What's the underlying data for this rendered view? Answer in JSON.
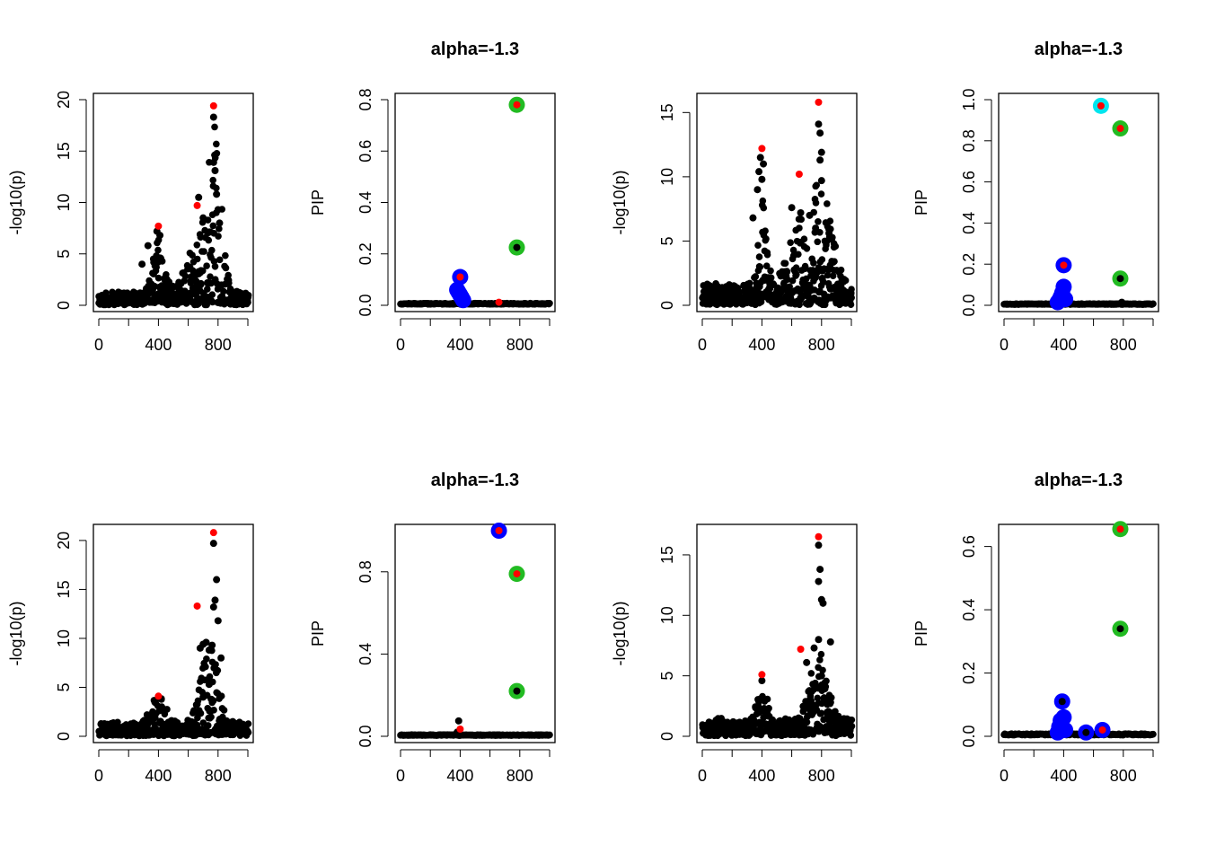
{
  "figure": {
    "background": "#ffffff"
  },
  "colors": {
    "black": "#000000",
    "red": "#ff0000",
    "blue": "#0000ff",
    "green": "#22bb22",
    "cyan": "#00e5ee"
  },
  "chart_data": [
    {
      "type": "scatter",
      "title": "",
      "xlabel": "",
      "ylabel": "-log10(p)",
      "xlim": [
        0,
        1000
      ],
      "ylim": [
        0,
        20
      ],
      "xticks": [
        "0",
        "400",
        "800"
      ],
      "yticks": [
        "0",
        "5",
        "10",
        "15",
        "20"
      ],
      "mode": "manhattan",
      "seed": 11,
      "background_level": 0.9,
      "peaks": [
        [
          780,
          12,
          40
        ],
        [
          400,
          4.5,
          40
        ],
        [
          680,
          5,
          80
        ]
      ],
      "black_points": [
        [
          770,
          18.3
        ],
        [
          770,
          13.9
        ],
        [
          780,
          13.1
        ],
        [
          790,
          10.8
        ],
        [
          670,
          10.5
        ],
        [
          700,
          8.5
        ],
        [
          800,
          9.3
        ],
        [
          810,
          8.0
        ],
        [
          390,
          7.2
        ],
        [
          410,
          6.8
        ],
        [
          330,
          5.8
        ],
        [
          290,
          4.0
        ]
      ],
      "red_points": [
        [
          770,
          19.4
        ],
        [
          400,
          7.7
        ],
        [
          660,
          9.7
        ]
      ],
      "big_points": []
    },
    {
      "type": "scatter",
      "title": "alpha=-1.3",
      "xlabel": "",
      "ylabel": "PIP",
      "xlim": [
        0,
        1000
      ],
      "ylim": [
        0,
        0.8
      ],
      "xticks": [
        "0",
        "400",
        "800"
      ],
      "yticks": [
        "0.0",
        "0.2",
        "0.4",
        "0.6",
        "0.8"
      ],
      "mode": "pip",
      "seed": 12,
      "black_points": [],
      "red_points": [
        [
          660,
          0.012
        ]
      ],
      "big_points": [
        {
          "x": 400,
          "y": 0.11,
          "ring": "blue",
          "inner": "red"
        },
        {
          "x": 380,
          "y": 0.06,
          "ring": "blue",
          "inner": "blue"
        },
        {
          "x": 390,
          "y": 0.05,
          "ring": "blue",
          "inner": "blue"
        },
        {
          "x": 400,
          "y": 0.04,
          "ring": "blue",
          "inner": "blue"
        },
        {
          "x": 410,
          "y": 0.03,
          "ring": "blue",
          "inner": "blue"
        },
        {
          "x": 420,
          "y": 0.02,
          "ring": "blue",
          "inner": "blue"
        },
        {
          "x": 780,
          "y": 0.78,
          "ring": "green",
          "inner": "red"
        },
        {
          "x": 780,
          "y": 0.225,
          "ring": "green",
          "inner": "black"
        }
      ]
    },
    {
      "type": "scatter",
      "title": "",
      "xlabel": "",
      "ylabel": "-log10(p)",
      "xlim": [
        0,
        1000
      ],
      "ylim": [
        0,
        16
      ],
      "xticks": [
        "0",
        "400",
        "800"
      ],
      "yticks": [
        "0",
        "5",
        "10",
        "15"
      ],
      "mode": "manhattan",
      "seed": 13,
      "background_level": 1.2,
      "peaks": [
        [
          400,
          6,
          30
        ],
        [
          780,
          7,
          80
        ],
        [
          620,
          3,
          60
        ]
      ],
      "black_points": [
        [
          780,
          14.1
        ],
        [
          790,
          13.4
        ],
        [
          800,
          11.9
        ],
        [
          790,
          11.3
        ],
        [
          800,
          9.7
        ],
        [
          390,
          11.5
        ],
        [
          410,
          11.0
        ],
        [
          380,
          10.4
        ],
        [
          400,
          9.8
        ],
        [
          370,
          9.0
        ],
        [
          340,
          6.8
        ],
        [
          600,
          7.6
        ],
        [
          660,
          7.2
        ],
        [
          720,
          7.0
        ],
        [
          850,
          5.6
        ],
        [
          760,
          6.0
        ]
      ],
      "red_points": [
        [
          780,
          15.8
        ],
        [
          400,
          12.2
        ],
        [
          650,
          10.2
        ]
      ],
      "big_points": []
    },
    {
      "type": "scatter",
      "title": "alpha=-1.3",
      "xlabel": "",
      "ylabel": "PIP",
      "xlim": [
        0,
        1000
      ],
      "ylim": [
        0,
        1.0
      ],
      "xticks": [
        "0",
        "400",
        "800"
      ],
      "yticks": [
        "0.0",
        "0.2",
        "0.4",
        "0.6",
        "0.8",
        "1.0"
      ],
      "mode": "pip",
      "seed": 14,
      "black_points": [
        [
          790,
          0.015
        ]
      ],
      "red_points": [],
      "big_points": [
        {
          "x": 650,
          "y": 0.97,
          "ring": "cyan",
          "inner": "red"
        },
        {
          "x": 780,
          "y": 0.86,
          "ring": "green",
          "inner": "red"
        },
        {
          "x": 780,
          "y": 0.13,
          "ring": "green",
          "inner": "black"
        },
        {
          "x": 400,
          "y": 0.195,
          "ring": "blue",
          "inner": "red"
        },
        {
          "x": 400,
          "y": 0.09,
          "ring": "blue",
          "inner": "blue"
        },
        {
          "x": 390,
          "y": 0.06,
          "ring": "blue",
          "inner": "blue"
        },
        {
          "x": 380,
          "y": 0.04,
          "ring": "blue",
          "inner": "blue"
        },
        {
          "x": 370,
          "y": 0.025,
          "ring": "blue",
          "inner": "blue"
        },
        {
          "x": 410,
          "y": 0.03,
          "ring": "blue",
          "inner": "blue"
        },
        {
          "x": 360,
          "y": 0.015,
          "ring": "blue",
          "inner": "blue"
        }
      ]
    },
    {
      "type": "scatter",
      "title": "",
      "xlabel": "",
      "ylabel": "-log10(p)",
      "xlim": [
        0,
        1000
      ],
      "ylim": [
        0,
        21
      ],
      "xticks": [
        "0",
        "400",
        "800"
      ],
      "yticks": [
        "0",
        "5",
        "10",
        "15",
        "20"
      ],
      "mode": "manhattan",
      "seed": 15,
      "background_level": 1.0,
      "peaks": [
        [
          740,
          7,
          60
        ],
        [
          400,
          2.5,
          50
        ]
      ],
      "black_points": [
        [
          770,
          19.7
        ],
        [
          790,
          16.0
        ],
        [
          780,
          13.9
        ],
        [
          770,
          13.2
        ],
        [
          800,
          11.8
        ],
        [
          680,
          9.0
        ],
        [
          700,
          9.4
        ],
        [
          720,
          9.6
        ],
        [
          740,
          8.8
        ],
        [
          760,
          9.3
        ],
        [
          820,
          8.0
        ],
        [
          740,
          5.3
        ],
        [
          700,
          4.0
        ]
      ],
      "red_points": [
        [
          770,
          20.8
        ],
        [
          660,
          13.3
        ],
        [
          400,
          4.1
        ]
      ],
      "big_points": []
    },
    {
      "type": "scatter",
      "title": "alpha=-1.3",
      "xlabel": "",
      "ylabel": "PIP",
      "xlim": [
        0,
        1000
      ],
      "ylim": [
        0,
        1.0
      ],
      "xticks": [
        "0",
        "400",
        "800"
      ],
      "yticks": [
        "0.0",
        "0.4",
        "0.8"
      ],
      "mode": "pip",
      "seed": 16,
      "black_points": [
        [
          390,
          0.075
        ],
        [
          380,
          0.02
        ]
      ],
      "red_points": [
        [
          400,
          0.035
        ]
      ],
      "big_points": [
        {
          "x": 660,
          "y": 1.0,
          "ring": "blue",
          "inner": "red"
        },
        {
          "x": 780,
          "y": 0.79,
          "ring": "green",
          "inner": "red"
        },
        {
          "x": 780,
          "y": 0.22,
          "ring": "green",
          "inner": "black"
        }
      ]
    },
    {
      "type": "scatter",
      "title": "",
      "xlabel": "",
      "ylabel": "-log10(p)",
      "xlim": [
        0,
        1000
      ],
      "ylim": [
        0,
        17
      ],
      "xticks": [
        "0",
        "400",
        "800"
      ],
      "yticks": [
        "0",
        "5",
        "10",
        "15"
      ],
      "mode": "manhattan",
      "seed": 17,
      "background_level": 1.0,
      "peaks": [
        [
          780,
          5,
          60
        ],
        [
          400,
          2.5,
          40
        ]
      ],
      "black_points": [
        [
          780,
          15.8
        ],
        [
          790,
          13.8
        ],
        [
          780,
          12.8
        ],
        [
          800,
          11.3
        ],
        [
          810,
          11.0
        ],
        [
          780,
          8.0
        ],
        [
          750,
          7.3
        ],
        [
          860,
          7.8
        ],
        [
          700,
          6.1
        ],
        [
          800,
          5.0
        ],
        [
          400,
          4.6
        ]
      ],
      "red_points": [
        [
          780,
          16.5
        ],
        [
          400,
          5.1
        ],
        [
          660,
          7.2
        ]
      ],
      "big_points": []
    },
    {
      "type": "scatter",
      "title": "alpha=-1.3",
      "xlabel": "",
      "ylabel": "PIP",
      "xlim": [
        0,
        1000
      ],
      "ylim": [
        0,
        0.65
      ],
      "xticks": [
        "0",
        "400",
        "800"
      ],
      "yticks": [
        "0.0",
        "0.2",
        "0.4",
        "0.6"
      ],
      "mode": "pip",
      "seed": 18,
      "black_points": [],
      "red_points": [],
      "big_points": [
        {
          "x": 780,
          "y": 0.655,
          "ring": "green",
          "inner": "red"
        },
        {
          "x": 780,
          "y": 0.34,
          "ring": "green",
          "inner": "black"
        },
        {
          "x": 390,
          "y": 0.11,
          "ring": "blue",
          "inner": "black"
        },
        {
          "x": 400,
          "y": 0.06,
          "ring": "blue",
          "inner": "red"
        },
        {
          "x": 380,
          "y": 0.05,
          "ring": "blue",
          "inner": "blue"
        },
        {
          "x": 370,
          "y": 0.03,
          "ring": "blue",
          "inner": "blue"
        },
        {
          "x": 410,
          "y": 0.02,
          "ring": "blue",
          "inner": "blue"
        },
        {
          "x": 360,
          "y": 0.012,
          "ring": "blue",
          "inner": "blue"
        },
        {
          "x": 550,
          "y": 0.012,
          "ring": "blue",
          "inner": "black"
        },
        {
          "x": 660,
          "y": 0.02,
          "ring": "blue",
          "inner": "red"
        }
      ]
    }
  ]
}
